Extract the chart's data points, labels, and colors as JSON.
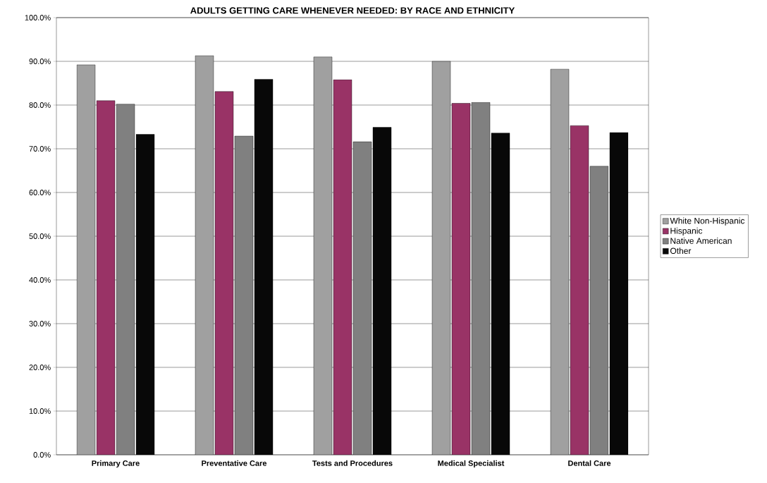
{
  "chart_data": {
    "type": "bar",
    "title": "ADULTS GETTING CARE WHENEVER NEEDED: BY RACE AND ETHNICITY",
    "categories": [
      "Primary Care",
      "Preventative Care",
      "Tests and Procedures",
      "Medical Specialist",
      "Dental Care"
    ],
    "series": [
      {
        "name": "White Non-Hispanic",
        "color": "#a0a0a0",
        "values": [
          89.2,
          91.3,
          91.0,
          90.0,
          88.2
        ]
      },
      {
        "name": "Hispanic",
        "color": "#993366",
        "values": [
          81.0,
          83.1,
          85.8,
          80.4,
          75.3
        ]
      },
      {
        "name": "Native American",
        "color": "#808080",
        "values": [
          80.2,
          72.9,
          71.6,
          80.6,
          66.0
        ]
      },
      {
        "name": "Other",
        "color": "#080808",
        "values": [
          73.3,
          85.9,
          74.9,
          73.6,
          73.7
        ]
      }
    ],
    "ylim": [
      0,
      100
    ],
    "yticks": [
      {
        "value": 0,
        "label": "0.0%"
      },
      {
        "value": 10,
        "label": "10.0%"
      },
      {
        "value": 20,
        "label": "20.0%"
      },
      {
        "value": 30,
        "label": "30.0%"
      },
      {
        "value": 40,
        "label": "40.0%"
      },
      {
        "value": 50,
        "label": "50.0%"
      },
      {
        "value": 60,
        "label": "60.0%"
      },
      {
        "value": 70,
        "label": "70.0%"
      },
      {
        "value": 80,
        "label": "80.0%"
      },
      {
        "value": 90,
        "label": "90.0%"
      },
      {
        "value": 100,
        "label": "100.0%"
      }
    ],
    "grid": "y",
    "legend": "right"
  }
}
